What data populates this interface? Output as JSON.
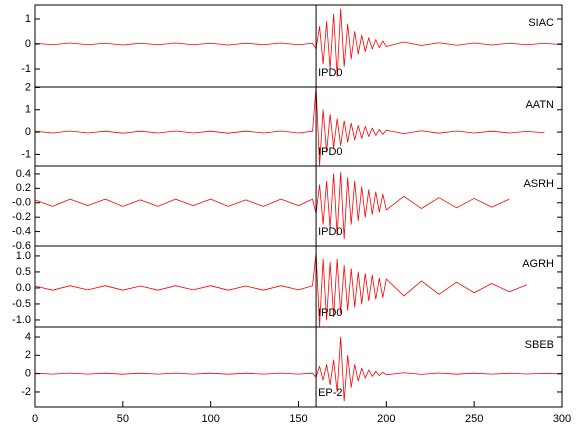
{
  "chart_data": [
    {
      "type": "line",
      "label": "SIAC",
      "color": "#ff0000",
      "pick": {
        "x": 160,
        "label": "IPD0"
      },
      "ylim": [
        -1.72,
        1.56
      ],
      "yticks": [
        -1,
        0,
        1
      ],
      "x": [
        0,
        10,
        20,
        30,
        40,
        50,
        60,
        70,
        80,
        90,
        100,
        110,
        120,
        130,
        140,
        150,
        158,
        160,
        162,
        164,
        166,
        168,
        170,
        172,
        174,
        176,
        178,
        180,
        182,
        184,
        186,
        188,
        190,
        192,
        194,
        196,
        198,
        200,
        210,
        220,
        230,
        240,
        250,
        260,
        270,
        280,
        290,
        300
      ],
      "values": [
        0.03,
        -0.03,
        0.04,
        -0.03,
        0.03,
        -0.04,
        0.03,
        -0.03,
        0.04,
        -0.03,
        0.03,
        -0.04,
        0.03,
        -0.03,
        0.04,
        -0.03,
        0.03,
        -0.2,
        0.7,
        -0.8,
        0.9,
        -1.0,
        1.2,
        -1.3,
        1.4,
        -0.9,
        0.8,
        -0.6,
        0.5,
        -0.4,
        0.35,
        -0.3,
        0.25,
        -0.2,
        0.18,
        -0.15,
        0.12,
        -0.1,
        0.08,
        -0.06,
        0.05,
        -0.05,
        0.04,
        -0.04,
        0.03,
        -0.03,
        0.03,
        -0.03
      ]
    },
    {
      "type": "line",
      "label": "AATN",
      "color": "#ff0000",
      "pick": {
        "x": 160,
        "label": "IPD0"
      },
      "ylim": [
        -1.52,
        2.02
      ],
      "yticks": [
        -1,
        0,
        1,
        2
      ],
      "x": [
        0,
        10,
        20,
        30,
        40,
        50,
        60,
        70,
        80,
        90,
        100,
        110,
        120,
        130,
        140,
        150,
        158,
        160,
        162,
        164,
        166,
        168,
        170,
        172,
        174,
        176,
        178,
        180,
        182,
        184,
        186,
        188,
        190,
        192,
        194,
        196,
        198,
        200,
        210,
        220,
        230,
        240,
        250,
        260,
        270,
        280,
        290,
        300
      ],
      "values": [
        0.04,
        -0.04,
        0.05,
        -0.04,
        0.04,
        -0.05,
        0.04,
        -0.04,
        0.05,
        -0.04,
        0.04,
        -0.05,
        0.04,
        -0.04,
        0.05,
        -0.04,
        0.04,
        2.0,
        -1.5,
        1.0,
        -0.9,
        0.8,
        -0.7,
        0.6,
        -0.6,
        0.5,
        -0.45,
        0.4,
        -0.35,
        0.3,
        -0.28,
        0.25,
        -0.2,
        0.18,
        -0.15,
        0.12,
        -0.1,
        0.08,
        -0.07,
        0.06,
        -0.05,
        0.05,
        -0.04,
        0.04,
        -0.04,
        0.03,
        -0.03,
        null
      ]
    },
    {
      "type": "line",
      "label": "ASRH",
      "color": "#ff0000",
      "pick": {
        "x": 160,
        "label": "IPD0"
      },
      "ylim": [
        -0.6,
        0.51
      ],
      "yticks": [
        -0.6,
        -0.4,
        -0.2,
        {
          "value": 0,
          "label": "-0.0"
        },
        0.2,
        0.4
      ],
      "x": [
        0,
        10,
        20,
        30,
        40,
        50,
        60,
        70,
        80,
        90,
        100,
        110,
        120,
        130,
        140,
        150,
        158,
        160,
        162,
        164,
        166,
        168,
        170,
        172,
        174,
        176,
        178,
        180,
        182,
        184,
        186,
        188,
        190,
        192,
        194,
        196,
        198,
        200,
        210,
        220,
        230,
        240,
        250,
        260,
        270,
        280,
        290,
        300
      ],
      "values": [
        0.04,
        -0.05,
        0.05,
        -0.04,
        0.05,
        -0.05,
        0.04,
        -0.05,
        0.05,
        -0.04,
        0.05,
        -0.05,
        0.04,
        -0.05,
        0.05,
        -0.04,
        0.05,
        -0.15,
        0.25,
        -0.3,
        0.3,
        -0.35,
        0.4,
        -0.45,
        0.42,
        -0.5,
        0.35,
        -0.3,
        0.3,
        -0.25,
        0.22,
        -0.2,
        0.18,
        -0.16,
        0.15,
        -0.13,
        0.12,
        -0.1,
        0.09,
        -0.08,
        0.07,
        -0.07,
        0.06,
        -0.06,
        0.05,
        null,
        null,
        null
      ]
    },
    {
      "type": "line",
      "label": "AGRH",
      "color": "#ff0000",
      "pick": {
        "x": 160,
        "label": "IPD0"
      },
      "ylim": [
        -1.22,
        1.31
      ],
      "yticks": [
        {
          "value": -1,
          "label": "-1.0"
        },
        -0.5,
        {
          "value": 0,
          "label": "0.0"
        },
        0.5,
        {
          "value": 1,
          "label": "1.0"
        }
      ],
      "x": [
        0,
        10,
        20,
        30,
        40,
        50,
        60,
        70,
        80,
        90,
        100,
        110,
        120,
        130,
        140,
        150,
        158,
        160,
        162,
        164,
        166,
        168,
        170,
        172,
        174,
        176,
        178,
        180,
        182,
        184,
        186,
        188,
        190,
        192,
        194,
        196,
        198,
        200,
        210,
        220,
        230,
        240,
        250,
        260,
        270,
        280,
        290,
        300
      ],
      "values": [
        0.06,
        -0.07,
        0.07,
        -0.06,
        0.07,
        -0.07,
        0.06,
        -0.07,
        0.07,
        -0.06,
        0.07,
        -0.07,
        0.06,
        -0.07,
        0.07,
        -0.06,
        0.07,
        1.1,
        -1.2,
        0.9,
        -1.0,
        0.8,
        -0.9,
        0.9,
        -0.8,
        0.7,
        -0.7,
        0.6,
        -0.6,
        0.5,
        -0.5,
        0.45,
        -0.4,
        0.4,
        -0.35,
        0.3,
        -0.3,
        0.28,
        -0.25,
        0.22,
        -0.2,
        0.18,
        -0.15,
        0.14,
        -0.12,
        0.1,
        null,
        null
      ]
    },
    {
      "type": "line",
      "label": "SBEB",
      "color": "#ff0000",
      "pick": {
        "x": 160,
        "label": "EP-2"
      },
      "ylim": [
        -3.64,
        5.09
      ],
      "yticks": [
        -2,
        0,
        2,
        4
      ],
      "xlim": [
        0,
        300
      ],
      "xticks": [
        0,
        50,
        100,
        150,
        200,
        250,
        300
      ],
      "x": [
        0,
        10,
        20,
        30,
        40,
        50,
        60,
        70,
        80,
        90,
        100,
        110,
        120,
        130,
        140,
        150,
        158,
        160,
        162,
        164,
        166,
        168,
        170,
        172,
        174,
        176,
        178,
        180,
        182,
        184,
        186,
        188,
        190,
        192,
        194,
        196,
        198,
        200,
        210,
        220,
        230,
        240,
        250,
        260,
        270,
        280,
        290,
        300
      ],
      "values": [
        0.05,
        -0.05,
        0.06,
        -0.05,
        0.05,
        -0.06,
        0.05,
        -0.05,
        0.06,
        -0.05,
        0.05,
        -0.06,
        0.05,
        -0.05,
        0.06,
        -0.05,
        0.05,
        -0.4,
        0.8,
        -0.7,
        1.0,
        -1.2,
        1.5,
        -2.0,
        4.0,
        -3.0,
        2.0,
        -1.5,
        1.0,
        -0.8,
        0.6,
        -0.5,
        0.4,
        -0.3,
        0.25,
        -0.2,
        0.15,
        -0.12,
        0.1,
        -0.08,
        0.07,
        -0.06,
        0.05,
        -0.05,
        0.04,
        -0.04,
        0.03,
        -0.03
      ]
    }
  ]
}
